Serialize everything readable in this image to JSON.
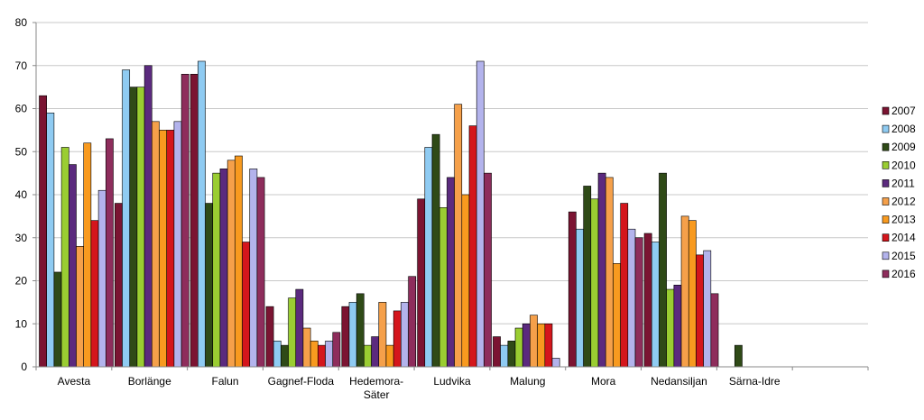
{
  "chart_data": {
    "type": "bar",
    "title": "",
    "xlabel": "",
    "ylabel": "",
    "ylim": [
      0,
      80
    ],
    "yticks": [
      0,
      10,
      20,
      30,
      40,
      50,
      60,
      70,
      80
    ],
    "grid": "y-major",
    "legend_position": "right",
    "categories": [
      [
        "Avesta"
      ],
      [
        "Borlänge"
      ],
      [
        "Falun"
      ],
      [
        "Gagnef-Floda"
      ],
      [
        "Hedemora-",
        "Säter"
      ],
      [
        "Ludvika"
      ],
      [
        "Malung"
      ],
      [
        "Mora"
      ],
      [
        "Nedansiljan"
      ],
      [
        "Särna-Idre"
      ]
    ],
    "series": [
      {
        "name": "2007",
        "color": "#7b1432",
        "values": [
          63,
          38,
          68,
          14,
          14,
          39,
          7,
          36,
          31,
          null
        ]
      },
      {
        "name": "2008",
        "color": "#8fcbf2",
        "values": [
          59,
          69,
          71,
          6,
          15,
          51,
          5,
          32,
          29,
          null
        ]
      },
      {
        "name": "2009",
        "color": "#2f4a17",
        "values": [
          22,
          65,
          38,
          5,
          17,
          54,
          6,
          42,
          45,
          5
        ]
      },
      {
        "name": "2010",
        "color": "#9acd32",
        "values": [
          51,
          65,
          45,
          16,
          5,
          37,
          9,
          39,
          18,
          null
        ]
      },
      {
        "name": "2011",
        "color": "#5b2a7e",
        "values": [
          47,
          70,
          46,
          18,
          7,
          44,
          10,
          45,
          19,
          null
        ]
      },
      {
        "name": "2012",
        "color": "#f5a04a",
        "values": [
          28,
          57,
          48,
          9,
          15,
          61,
          12,
          44,
          35,
          null
        ]
      },
      {
        "name": "2013",
        "color": "#f89a1f",
        "values": [
          52,
          55,
          49,
          6,
          5,
          40,
          10,
          24,
          34,
          null
        ]
      },
      {
        "name": "2014",
        "color": "#d4161c",
        "values": [
          34,
          55,
          29,
          5,
          13,
          56,
          10,
          38,
          26,
          null
        ]
      },
      {
        "name": "2015",
        "color": "#b3b3ec",
        "values": [
          41,
          57,
          46,
          6,
          15,
          71,
          2,
          32,
          27,
          null
        ]
      },
      {
        "name": "2016",
        "color": "#8e2d5c",
        "values": [
          53,
          68,
          44,
          8,
          21,
          45,
          null,
          30,
          17,
          null
        ]
      }
    ]
  }
}
